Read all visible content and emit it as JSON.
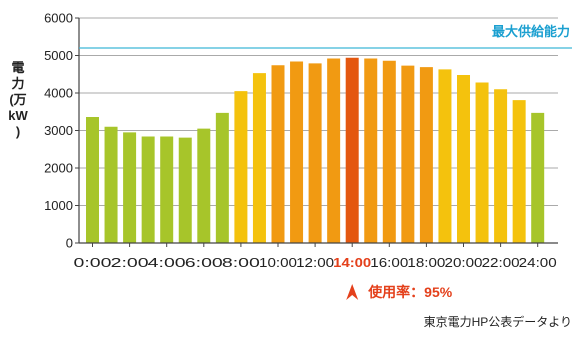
{
  "chart_data": {
    "type": "bar",
    "ylabel": "電力(万kW)",
    "ylim": [
      0,
      6000
    ],
    "yticks": [
      0,
      1000,
      2000,
      3000,
      4000,
      5000,
      6000
    ],
    "xticks": [
      "0:00",
      "2:00",
      "4:00",
      "6:00",
      "8:00",
      "10:00",
      "12:00",
      "14:00",
      "16:00",
      "18:00",
      "20:00",
      "22:00",
      "24:00"
    ],
    "hours": [
      0,
      1,
      2,
      3,
      4,
      5,
      6,
      7,
      8,
      9,
      10,
      11,
      12,
      13,
      14,
      15,
      16,
      17,
      18,
      19,
      20,
      21,
      22,
      23,
      24
    ],
    "values": [
      3360,
      3100,
      2950,
      2840,
      2840,
      2810,
      3050,
      3470,
      4050,
      4530,
      4740,
      4840,
      4790,
      4920,
      4940,
      4920,
      4860,
      4730,
      4690,
      4630,
      4480,
      4280,
      4100,
      3810,
      3470
    ],
    "capacity": {
      "label": "最大供給能力",
      "value": 5200
    },
    "peak": {
      "hour": 14,
      "usage_label": "使用率：95%"
    },
    "colors": {
      "green": "#a7c52a",
      "yellow": "#f4c20d",
      "orange": "#f19a12",
      "peak": "#e4570f",
      "capacity_line": "#3fb8d8",
      "capacity_text": "#1a9fd0",
      "peak_text": "#e4401b",
      "grid": "#aaaaaa"
    }
  },
  "source_note": "東京電力HP公表データより"
}
